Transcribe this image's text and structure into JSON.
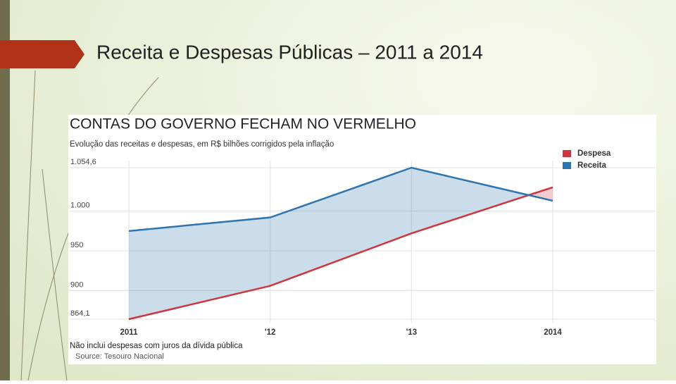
{
  "slide": {
    "title": "Receita e Despesas Públicas – 2011 a 2014"
  },
  "chart_data": {
    "type": "line",
    "title": "CONTAS DO GOVERNO FECHAM NO VERMELHO",
    "subtitle": "Evolução das receitas e despesas, em R$ bilhões corrigidos pela inflação",
    "note": "Não inclui despesas com juros da dívida pública",
    "source": "Source: Tesouro Nacional",
    "categories": [
      "2011",
      "'12",
      "'13",
      "2014"
    ],
    "series": [
      {
        "name": "Despesa",
        "color": "#d0343f",
        "values": [
          864.1,
          906,
          972,
          1030
        ]
      },
      {
        "name": "Receita",
        "color": "#2e75b0",
        "values": [
          975,
          992,
          1054.6,
          1013
        ]
      }
    ],
    "ylim": [
      864.1,
      1054.6
    ],
    "yticks": [
      {
        "value": 864.1,
        "label": "864,1"
      },
      900,
      950,
      {
        "value": 1000,
        "label": "1.000"
      },
      {
        "value": 1054.6,
        "label": "1.054,6"
      }
    ],
    "grid": true,
    "legend": "top-right"
  }
}
